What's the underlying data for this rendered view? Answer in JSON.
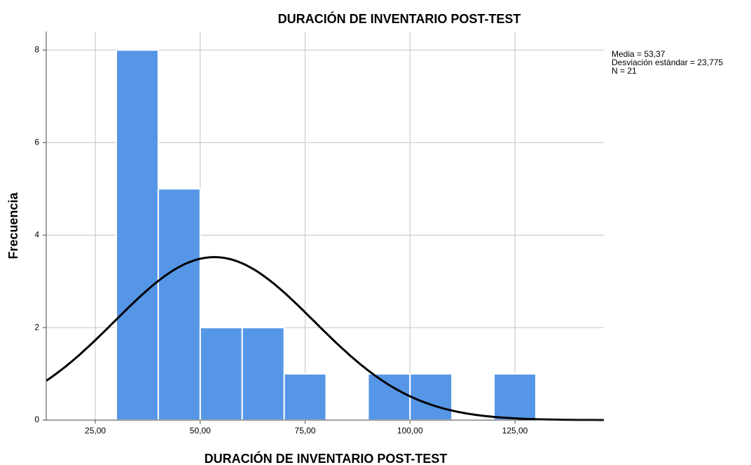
{
  "chart_data": {
    "type": "histogram",
    "title": "DURACIÓN DE INVENTARIO POST-TEST",
    "x_label": "DURACIÓN DE INVENTARIO POST-TEST",
    "y_label": "Frecuencia",
    "bins": [
      30,
      40,
      50,
      60,
      70,
      80,
      90,
      100,
      110,
      120,
      130
    ],
    "values": [
      8,
      5,
      2,
      2,
      1,
      0,
      1,
      1,
      0,
      1
    ],
    "color": "#5596e6",
    "xlim": [
      13.3,
      146.2
    ],
    "ylim": [
      0,
      8.4
    ],
    "xticks": [
      {
        "value": 25,
        "label": "25,00"
      },
      {
        "value": 50,
        "label": "50,00"
      },
      {
        "value": 75,
        "label": "75,00"
      },
      {
        "value": 100,
        "label": "100,00"
      },
      {
        "value": 125,
        "label": "125,00"
      }
    ],
    "yticks": [
      0,
      2,
      4,
      6,
      8
    ],
    "grid": true,
    "stats": {
      "mean": {
        "value": 53.37,
        "label": "Media = 53,37"
      },
      "sd": {
        "value": 23.775,
        "label": "Desviación estándar = 23,775"
      },
      "n": {
        "value": 21,
        "label": "N = 21"
      }
    }
  }
}
